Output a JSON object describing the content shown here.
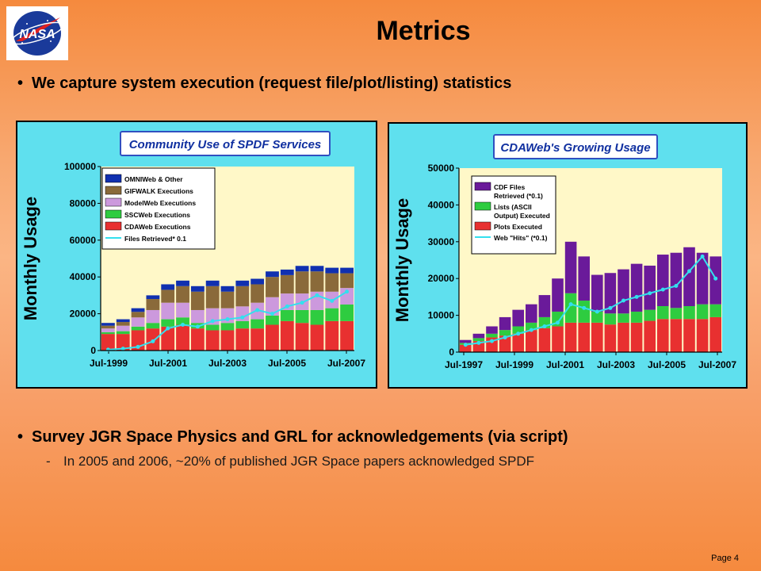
{
  "slide": {
    "title": "Metrics",
    "bullet1": "We capture system execution (request file/plot/listing) statistics",
    "bullet2": "Survey JGR Space Physics and GRL for acknowledgements (via script)",
    "sub_bullet": "In 2005 and 2006, ~20% of published JGR Space papers acknowledged SPDF",
    "page": "Page 4",
    "logo_text": "NASA"
  },
  "chart_data": [
    {
      "type": "bar",
      "title": "Community Use of SPDF Services",
      "ylabel": "Monthly Usage",
      "ylim": [
        0,
        100000
      ],
      "yticks": [
        "100000",
        "80000",
        "60000",
        "40000",
        "20000",
        "0"
      ],
      "xticks": [
        "Jul-1999",
        "Jul-2001",
        "Jul-2003",
        "Jul-2005",
        "Jul-2007"
      ],
      "legend": [
        "OMNIWeb & Other",
        "GIFWALK Executions",
        "ModelWeb Executions",
        "SSCWeb Executions",
        "CDAWeb Executions",
        "Files Retrieved* 0.1"
      ],
      "colors": [
        "#1030b0",
        "#8a6a3a",
        "#cc99dd",
        "#2ecc40",
        "#e83030",
        "#33e0ee"
      ],
      "months": [
        "Jul-1999",
        "Jan-2000",
        "Jul-2000",
        "Jan-2001",
        "Jul-2001",
        "Jan-2002",
        "Jul-2002",
        "Jan-2003",
        "Jul-2003",
        "Jan-2004",
        "Jul-2004",
        "Jan-2005",
        "Jul-2005",
        "Jan-2006",
        "Jul-2006",
        "Jan-2007",
        "Jul-2007"
      ],
      "series": [
        {
          "name": "CDAWeb Executions",
          "values": [
            9000,
            9000,
            11000,
            12000,
            13000,
            14000,
            12000,
            11000,
            11000,
            12000,
            12000,
            14000,
            16000,
            15000,
            14000,
            16000,
            16000
          ]
        },
        {
          "name": "SSCWeb Executions",
          "values": [
            1000,
            1500,
            2000,
            3000,
            4000,
            4000,
            3000,
            3000,
            4000,
            4000,
            5000,
            5000,
            6000,
            7000,
            8000,
            7000,
            9000
          ]
        },
        {
          "name": "ModelWeb Executions",
          "values": [
            2000,
            3000,
            5000,
            7000,
            9000,
            8000,
            7000,
            9000,
            8000,
            8000,
            9000,
            10000,
            9000,
            9000,
            10000,
            9000,
            9000
          ]
        },
        {
          "name": "GIFWALK Executions",
          "values": [
            1500,
            2000,
            3000,
            6000,
            7000,
            9000,
            10000,
            12000,
            9000,
            11000,
            10000,
            11000,
            10000,
            12000,
            11000,
            10000,
            8000
          ]
        },
        {
          "name": "OMNIWeb & Other",
          "values": [
            1500,
            1500,
            2000,
            2000,
            3000,
            3000,
            3000,
            3000,
            3000,
            3000,
            3000,
            3000,
            3000,
            3000,
            3000,
            3000,
            3000
          ]
        },
        {
          "name": "Files Retrieved* 0.1",
          "values": [
            500,
            1000,
            2000,
            5000,
            12000,
            14000,
            13000,
            16000,
            17000,
            18000,
            22000,
            20000,
            24000,
            26000,
            30000,
            27000,
            32000
          ]
        }
      ]
    },
    {
      "type": "bar",
      "title": "CDAWeb's Growing Usage",
      "ylabel": "Monthly Usage",
      "ylim": [
        0,
        50000
      ],
      "yticks": [
        "50000",
        "40000",
        "30000",
        "20000",
        "10000",
        "0"
      ],
      "xticks": [
        "Jul-1997",
        "Jul-1999",
        "Jul-2001",
        "Jul-2003",
        "Jul-2005",
        "Jul-2007"
      ],
      "legend": [
        "CDF Files Retrieved (*0.1)",
        "Lists (ASCII Output) Executed",
        "Plots Executed",
        "Web \"Hits\" (*0.1)"
      ],
      "colors": [
        "#6a1a9a",
        "#2ecc40",
        "#e83030",
        "#33e0ee"
      ],
      "months": [
        "Jul-1997",
        "Jan-1998",
        "Jul-1998",
        "Jan-1999",
        "Jul-1999",
        "Jan-2000",
        "Jul-2000",
        "Jan-2001",
        "Jul-2001",
        "Jan-2002",
        "Jul-2002",
        "Jan-2003",
        "Jul-2003",
        "Jan-2004",
        "Jul-2004",
        "Jan-2005",
        "Jul-2005",
        "Jan-2006",
        "Jul-2006",
        "Jan-2007"
      ],
      "series": [
        {
          "name": "Plots Executed",
          "values": [
            2000,
            3000,
            4000,
            4500,
            5000,
            6000,
            6500,
            7000,
            8000,
            8000,
            8000,
            7500,
            8000,
            8000,
            8500,
            9000,
            9000,
            9000,
            9000,
            9500
          ]
        },
        {
          "name": "Lists (ASCII Output) Executed",
          "values": [
            500,
            800,
            1000,
            1500,
            2000,
            2000,
            3000,
            4000,
            8000,
            6000,
            3000,
            3000,
            2500,
            3000,
            3000,
            3500,
            3000,
            3500,
            4000,
            3500
          ]
        },
        {
          "name": "CDF Files Retrieved (*0.1)",
          "values": [
            800,
            1200,
            2000,
            3500,
            4500,
            5000,
            6000,
            9000,
            14000,
            12000,
            10000,
            11000,
            12000,
            13000,
            12000,
            14000,
            15000,
            16000,
            14000,
            13000
          ]
        },
        {
          "name": "Web \"Hits\" (*0.1)",
          "values": [
            2000,
            2500,
            3000,
            4000,
            5000,
            6000,
            7000,
            8000,
            13000,
            12000,
            11000,
            12000,
            14000,
            15000,
            16000,
            17000,
            18000,
            22000,
            26000,
            20000
          ]
        }
      ]
    }
  ]
}
